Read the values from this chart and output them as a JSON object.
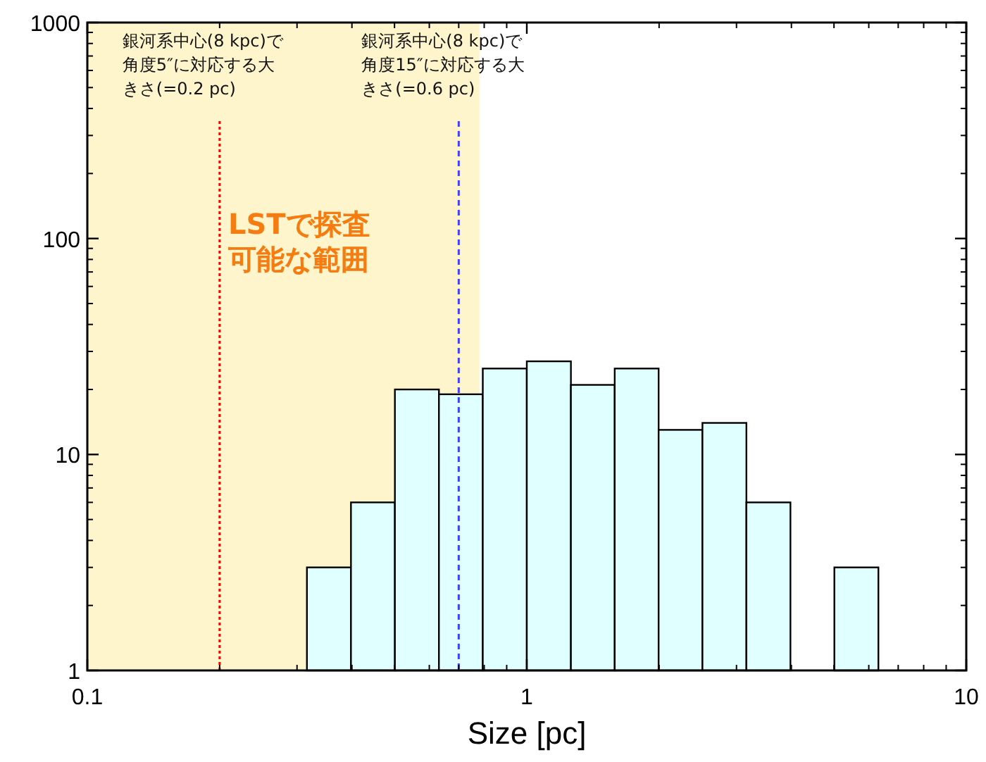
{
  "chart_data": {
    "type": "histogram",
    "xlabel": "Size [pc]",
    "log": "xy",
    "bins": [
      0.316,
      0.398,
      0.501,
      0.631,
      0.794,
      1,
      1.26,
      1.585,
      1.995,
      2.51,
      3.16,
      3.98,
      5.01,
      6.31
    ],
    "values": [
      3,
      6,
      20,
      19,
      25,
      27,
      21,
      25,
      13,
      14,
      6,
      null,
      3
    ],
    "color": "#e0ffff",
    "xlim": [
      0.1,
      10
    ],
    "xticks": [
      0.1,
      1,
      10
    ],
    "ylim": [
      1,
      1000
    ],
    "yticks": [
      1,
      10,
      100,
      1000
    ],
    "grid": false,
    "annotations": [
      "銀河系中心(8 kpc)で角度5″に対応する大きさ(=0.2 pc)",
      "銀河系中心(8 kpc)で角度15″に対応する大きさ(=0.6 pc)"
    ],
    "ref_lines": [
      {
        "axis": "x",
        "value": 0.2,
        "color": "#ff0000",
        "line_style": "dotted"
      },
      {
        "axis": "x",
        "value": 0.7,
        "color": "#4040ff",
        "line_style": "dashed"
      }
    ],
    "bands": [
      {
        "axis": "x",
        "from": 0.1,
        "to": 0.78,
        "label": "LSTで探査可能な範囲",
        "color": "#fff5cc"
      }
    ]
  }
}
